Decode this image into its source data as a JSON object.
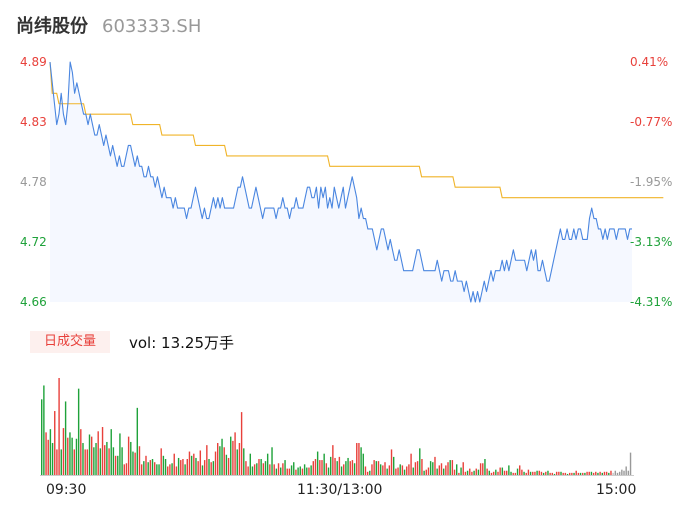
{
  "header": {
    "name": "尚纬股份",
    "code": "603333.SH"
  },
  "colors": {
    "up": "#e8413b",
    "down": "#1fa23a",
    "flat": "#999999",
    "price_line": "#4a86e0",
    "avg_line": "#f0b429",
    "area_fill": "#f5f8ff"
  },
  "volume": {
    "badge": "日成交量",
    "text": "vol: 13.25万手"
  },
  "chart_data": [
    {
      "type": "line",
      "series": [
        {
          "values": [
            4.89,
            4.87,
            4.85,
            4.83,
            4.84,
            4.86,
            4.84,
            4.83,
            4.85,
            4.89,
            4.88,
            4.86,
            4.87,
            4.86,
            4.85,
            4.84,
            4.84,
            4.83,
            4.84,
            4.83,
            4.82,
            4.82,
            4.83,
            4.82,
            4.81,
            4.82,
            4.81,
            4.8,
            4.81,
            4.8,
            4.79,
            4.8,
            4.79,
            4.79,
            4.8,
            4.81,
            4.81,
            4.8,
            4.79,
            4.8,
            4.79,
            4.79,
            4.78,
            4.78,
            4.79,
            4.78,
            4.78,
            4.77,
            4.78,
            4.77,
            4.76,
            4.77,
            4.76,
            4.76,
            4.76,
            4.75,
            4.76,
            4.75,
            4.75,
            4.75,
            4.75,
            4.74,
            4.75,
            4.75,
            4.76,
            4.77,
            4.76,
            4.75,
            4.74,
            4.75,
            4.74,
            4.74,
            4.75,
            4.76,
            4.75,
            4.76,
            4.75,
            4.76,
            4.75,
            4.75,
            4.75,
            4.75,
            4.75,
            4.76,
            4.77,
            4.77,
            4.78,
            4.77,
            4.76,
            4.75,
            4.75,
            4.76,
            4.77,
            4.76,
            4.75,
            4.74,
            4.75,
            4.75,
            4.75,
            4.75,
            4.75,
            4.74,
            4.75,
            4.75,
            4.76,
            4.75,
            4.75,
            4.74,
            4.75,
            4.75,
            4.76,
            4.75,
            4.75,
            4.75,
            4.76,
            4.77,
            4.77,
            4.76,
            4.76,
            4.77,
            4.75,
            4.77,
            4.76,
            4.77,
            4.75,
            4.76,
            4.75,
            4.77,
            4.76,
            4.75,
            4.76,
            4.77,
            4.75,
            4.76,
            4.77,
            4.78,
            4.77,
            4.76,
            4.74,
            4.75,
            4.74,
            4.74,
            4.73,
            4.73,
            4.73,
            4.72,
            4.71,
            4.72,
            4.73,
            4.73,
            4.72,
            4.71,
            4.72,
            4.71,
            4.7,
            4.7,
            4.71,
            4.7,
            4.69,
            4.69,
            4.69,
            4.69,
            4.69,
            4.7,
            4.71,
            4.71,
            4.7,
            4.69,
            4.69,
            4.69,
            4.69,
            4.69,
            4.69,
            4.7,
            4.69,
            4.68,
            4.69,
            4.69,
            4.69,
            4.68,
            4.68,
            4.69,
            4.68,
            4.68,
            4.68,
            4.67,
            4.68,
            4.67,
            4.66,
            4.67,
            4.66,
            4.67,
            4.66,
            4.67,
            4.68,
            4.67,
            4.68,
            4.69,
            4.68,
            4.69,
            4.69,
            4.69,
            4.7,
            4.69,
            4.7,
            4.69,
            4.7,
            4.71,
            4.7,
            4.7,
            4.7,
            4.7,
            4.7,
            4.69,
            4.7,
            4.71,
            4.7,
            4.71,
            4.69,
            4.69,
            4.7,
            4.69,
            4.68,
            4.68,
            4.69,
            4.7,
            4.71,
            4.72,
            4.73,
            4.72,
            4.72,
            4.73,
            4.72,
            4.72,
            4.73,
            4.72,
            4.73,
            4.73,
            4.72,
            4.72,
            4.72,
            4.74,
            4.75,
            4.74,
            4.74,
            4.73,
            4.73,
            4.72,
            4.73,
            4.72,
            4.73,
            4.73,
            4.73,
            4.72,
            4.73,
            4.73,
            4.73,
            4.73,
            4.72,
            4.73,
            4.73
          ]
        },
        {
          "values": [
            4.89,
            4.86,
            4.86,
            4.86,
            4.85,
            4.85,
            4.85,
            4.85,
            4.85,
            4.85,
            4.85,
            4.85,
            4.85,
            4.85,
            4.85,
            4.85,
            4.84,
            4.84,
            4.84,
            4.84,
            4.84,
            4.84,
            4.84,
            4.84,
            4.84,
            4.84,
            4.84,
            4.84,
            4.84,
            4.84,
            4.84,
            4.84,
            4.84,
            4.84,
            4.84,
            4.84,
            4.84,
            4.83,
            4.83,
            4.83,
            4.83,
            4.83,
            4.83,
            4.83,
            4.83,
            4.83,
            4.83,
            4.83,
            4.83,
            4.83,
            4.82,
            4.82,
            4.82,
            4.82,
            4.82,
            4.82,
            4.82,
            4.82,
            4.82,
            4.82,
            4.82,
            4.82,
            4.82,
            4.82,
            4.82,
            4.81,
            4.81,
            4.81,
            4.81,
            4.81,
            4.81,
            4.81,
            4.81,
            4.81,
            4.81,
            4.81,
            4.81,
            4.81,
            4.81,
            4.8,
            4.8,
            4.8,
            4.8,
            4.8,
            4.8,
            4.8,
            4.8,
            4.8,
            4.8,
            4.8,
            4.8,
            4.8,
            4.8,
            4.8,
            4.8,
            4.8,
            4.8,
            4.8,
            4.8,
            4.8,
            4.8,
            4.8,
            4.8,
            4.8,
            4.8,
            4.8,
            4.8,
            4.8,
            4.8,
            4.8,
            4.8,
            4.8,
            4.8,
            4.8,
            4.8,
            4.8,
            4.8,
            4.8,
            4.8,
            4.8,
            4.8,
            4.8,
            4.8,
            4.8,
            4.8,
            4.79,
            4.79,
            4.79,
            4.79,
            4.79,
            4.79,
            4.79,
            4.79,
            4.79,
            4.79,
            4.79,
            4.79,
            4.79,
            4.79,
            4.79,
            4.79,
            4.79,
            4.79,
            4.79,
            4.79,
            4.79,
            4.79,
            4.79,
            4.79,
            4.79,
            4.79,
            4.79,
            4.79,
            4.79,
            4.79,
            4.79,
            4.79,
            4.79,
            4.79,
            4.79,
            4.79,
            4.79,
            4.79,
            4.79,
            4.79,
            4.79,
            4.78,
            4.78,
            4.78,
            4.78,
            4.78,
            4.78,
            4.78,
            4.78,
            4.78,
            4.78,
            4.78,
            4.78,
            4.78,
            4.78,
            4.78,
            4.77,
            4.77,
            4.77,
            4.77,
            4.77,
            4.77,
            4.77,
            4.77,
            4.77,
            4.77,
            4.77,
            4.77,
            4.77,
            4.77,
            4.77,
            4.77,
            4.77,
            4.77,
            4.77,
            4.77,
            4.77,
            4.76,
            4.76,
            4.76,
            4.76,
            4.76,
            4.76,
            4.76,
            4.76,
            4.76,
            4.76,
            4.76,
            4.76,
            4.76,
            4.76,
            4.76,
            4.76,
            4.76,
            4.76,
            4.76,
            4.76,
            4.76,
            4.76,
            4.76,
            4.76,
            4.76,
            4.76,
            4.76,
            4.76,
            4.76,
            4.76,
            4.76,
            4.76,
            4.76,
            4.76,
            4.76,
            4.76,
            4.76,
            4.76,
            4.76,
            4.76,
            4.76,
            4.76,
            4.76,
            4.76,
            4.76,
            4.76,
            4.76,
            4.76,
            4.76,
            4.76,
            4.76,
            4.76,
            4.76,
            4.76,
            4.76,
            4.76,
            4.76,
            4.76,
            4.76,
            4.76,
            4.76,
            4.76,
            4.76,
            4.76,
            4.76,
            4.76,
            4.76,
            4.76,
            4.76,
            4.76,
            4.76,
            4.76,
            4.76
          ]
        }
      ],
      "ylim": [
        4.66,
        4.89
      ],
      "yticks_left": [
        "4.89",
        "4.83",
        "4.78",
        "4.72",
        "4.66"
      ],
      "yticks_right": [
        "0.41%",
        "-0.77%",
        "-1.95%",
        "-3.13%",
        "-4.31%"
      ],
      "grid": false
    },
    {
      "type": "bar",
      "volumes": [
        0.71,
        0.84,
        0.4,
        0.33,
        0.43,
        0.3,
        0.6,
        0.24,
        0.91,
        0.24,
        0.44,
        0.69,
        0.35,
        0.4,
        0.35,
        0.24,
        0.34,
        0.81,
        0.43,
        0.3,
        0.24,
        0.24,
        0.38,
        0.36,
        0.26,
        0.3,
        0.41,
        0.25,
        0.45,
        0.28,
        0.31,
        0.25,
        0.43,
        0.26,
        0.18,
        0.18,
        0.39,
        0.26,
        0.1,
        0.11,
        0.36,
        0.31,
        0.22,
        0.21,
        0.63,
        0.27,
        0.1,
        0.13,
        0.18,
        0.12,
        0.14,
        0.15,
        0.12,
        0.1,
        0.1,
        0.25,
        0.18,
        0.15,
        0.08,
        0.1,
        0.11,
        0.2,
        0.08,
        0.16,
        0.14,
        0.15,
        0.1,
        0.15,
        0.22,
        0.18,
        0.2,
        0.16,
        0.13,
        0.23,
        0.09,
        0.14,
        0.28,
        0.15,
        0.12,
        0.13,
        0.22,
        0.3,
        0.27,
        0.34,
        0.26,
        0.19,
        0.16,
        0.36,
        0.32,
        0.4,
        0.24,
        0.3,
        0.59,
        0.25,
        0.13,
        0.08,
        0.2,
        0.08,
        0.1,
        0.11,
        0.15,
        0.15,
        0.11,
        0.13,
        0.2,
        0.1,
        0.26,
        0.1,
        0.06,
        0.11,
        0.07,
        0.11,
        0.14,
        0.06,
        0.06,
        0.09,
        0.12,
        0.05,
        0.07,
        0.08,
        0.06,
        0.1,
        0.07,
        0.07,
        0.09,
        0.13,
        0.15,
        0.22,
        0.14,
        0.14,
        0.2,
        0.11,
        0.07,
        0.17,
        0.28,
        0.16,
        0.13,
        0.17,
        0.08,
        0.1,
        0.13,
        0.16,
        0.13,
        0.14,
        0.11,
        0.3,
        0.3,
        0.26,
        0.2,
        0.08,
        0.03,
        0.04,
        0.1,
        0.14,
        0.13,
        0.13,
        0.1,
        0.09,
        0.12,
        0.06,
        0.09,
        0.24,
        0.17,
        0.06,
        0.07,
        0.1,
        0.09,
        0.05,
        0.08,
        0.1,
        0.2,
        0.07,
        0.12,
        0.13,
        0.25,
        0.15,
        0.04,
        0.05,
        0.07,
        0.13,
        0.12,
        0.17,
        0.06,
        0.09,
        0.11,
        0.06,
        0.09,
        0.12,
        0.14,
        0.14,
        0.05,
        0.1,
        0.02,
        0.07,
        0.12,
        0.03,
        0.04,
        0.06,
        0.03,
        0.04,
        0.06,
        0.05,
        0.11,
        0.11,
        0.15,
        0.06,
        0.04,
        0.02,
        0.03,
        0.05,
        0.03,
        0.07,
        0.07,
        0.04,
        0.04,
        0.09,
        0.03,
        0.02,
        0.02,
        0.06,
        0.09,
        0.05,
        0.03,
        0.02,
        0.05,
        0.03,
        0.03,
        0.03,
        0.04,
        0.04,
        0.03,
        0.02,
        0.03,
        0.04,
        0.02,
        0.02,
        0.01,
        0.03,
        0.03,
        0.03,
        0.02,
        0.02,
        0.01,
        0.02,
        0.02,
        0.02,
        0.04,
        0.02,
        0.02,
        0.02,
        0.02,
        0.03,
        0.03,
        0.03,
        0.02,
        0.03,
        0.02,
        0.03,
        0.02,
        0.03,
        0.03,
        0.02,
        0.04,
        0.02,
        0.04,
        0.02,
        0.03,
        0.05,
        0.04,
        0.08,
        0.04,
        0.21
      ],
      "directions": [
        "down",
        "down",
        "up",
        "up",
        "down",
        "down",
        "up",
        "up",
        "up",
        "down",
        "up",
        "down",
        "up",
        "down",
        "down",
        "up",
        "down",
        "down",
        "up",
        "down",
        "up",
        "up",
        "down",
        "up",
        "down",
        "down",
        "up",
        "down",
        "up",
        "up",
        "down",
        "up",
        "down",
        "down",
        "up",
        "down",
        "down",
        "down",
        "up",
        "up",
        "up",
        "down",
        "down",
        "up",
        "down",
        "up",
        "up",
        "down",
        "up",
        "down",
        "up",
        "down",
        "up",
        "down",
        "down",
        "up",
        "down",
        "down",
        "up",
        "up",
        "down",
        "up",
        "up",
        "down",
        "up",
        "up",
        "down",
        "up",
        "up",
        "down",
        "up",
        "down",
        "up",
        "up",
        "down",
        "up",
        "up",
        "down",
        "up",
        "down",
        "up",
        "up",
        "down",
        "down",
        "up",
        "down",
        "up",
        "down",
        "up",
        "up",
        "down",
        "up",
        "up",
        "down",
        "up",
        "up",
        "down",
        "down",
        "up",
        "down",
        "up",
        "down",
        "up",
        "down",
        "down",
        "up",
        "down",
        "up",
        "down",
        "up",
        "down",
        "up",
        "down",
        "up",
        "up",
        "down",
        "down",
        "up",
        "down",
        "down",
        "up",
        "down",
        "down",
        "up",
        "down",
        "up",
        "up",
        "down",
        "up",
        "up",
        "down",
        "up",
        "down",
        "down",
        "up",
        "up",
        "down",
        "up",
        "down",
        "up",
        "down",
        "down",
        "up",
        "up",
        "down",
        "up",
        "up",
        "down",
        "down",
        "up",
        "up",
        "down",
        "up",
        "up",
        "down",
        "up",
        "down",
        "up",
        "up",
        "down",
        "up",
        "up",
        "down",
        "up",
        "up",
        "down",
        "up",
        "down",
        "up",
        "up",
        "up",
        "down",
        "up",
        "up",
        "down",
        "up",
        "down",
        "up",
        "up",
        "down",
        "down",
        "up",
        "down",
        "up",
        "up",
        "down",
        "up",
        "up",
        "down",
        "up",
        "up",
        "down",
        "up",
        "down",
        "up",
        "up",
        "down",
        "up",
        "up",
        "down",
        "up",
        "down",
        "up",
        "up",
        "down",
        "up",
        "down",
        "up",
        "up",
        "down",
        "up",
        "up",
        "down",
        "up",
        "up",
        "down",
        "down",
        "up",
        "up",
        "down",
        "up",
        "up",
        "down",
        "up",
        "up",
        "down",
        "up",
        "up",
        "down",
        "up",
        "up",
        "down",
        "up",
        "down",
        "up",
        "up",
        "down",
        "up",
        "up",
        "down",
        "up",
        "up",
        "down",
        "up",
        "up",
        "down",
        "up",
        "up",
        "down",
        "up",
        "down",
        "up",
        "up",
        "down",
        "up",
        "up",
        "down",
        "up",
        "down",
        "up",
        "up",
        "down",
        "up",
        "flat"
      ]
    }
  ],
  "xticks": [
    "09:30",
    "11:30/13:00",
    "15:00"
  ]
}
